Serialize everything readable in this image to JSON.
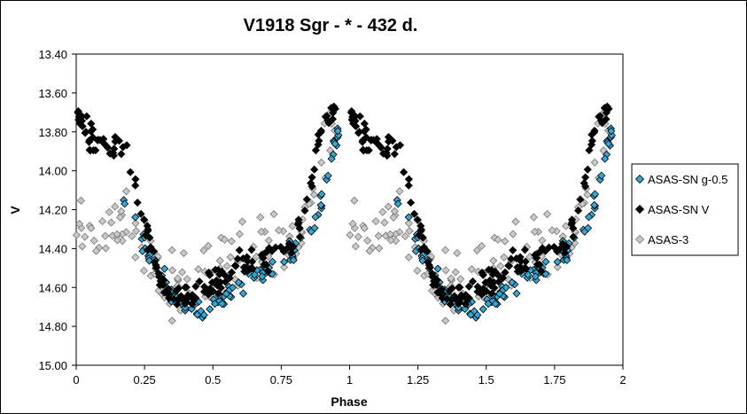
{
  "chart_data": {
    "type": "scatter",
    "title": "V1918 Sgr - * - 432 d.",
    "xlabel": "Phase",
    "ylabel": "V",
    "xlim": [
      0,
      2
    ],
    "ylim": [
      15.0,
      13.4
    ],
    "y_reversed": true,
    "grid": false,
    "legend_position": "right",
    "x_ticks": [
      "0",
      "0.25",
      "0.5",
      "0.75",
      "1",
      "1.25",
      "1.5",
      "1.75",
      "2"
    ],
    "y_ticks": [
      "13.40",
      "13.60",
      "13.80",
      "14.00",
      "14.20",
      "14.40",
      "14.60",
      "14.80",
      "15.00"
    ],
    "series": [
      {
        "name": "ASAS-SN g-0.5",
        "marker": "diamond",
        "color": "#33a7d6",
        "curve": {
          "phase": [
            0.17,
            0.2,
            0.25,
            0.3,
            0.35,
            0.4,
            0.45,
            0.5,
            0.55,
            0.6,
            0.65,
            0.7,
            0.75,
            0.8,
            0.85,
            0.9,
            0.93,
            0.96
          ],
          "mag": [
            14.18,
            14.22,
            14.38,
            14.52,
            14.63,
            14.7,
            14.72,
            14.68,
            14.63,
            14.58,
            14.54,
            14.5,
            14.46,
            14.42,
            14.34,
            14.15,
            13.92,
            13.78
          ]
        },
        "scatter": 0.05
      },
      {
        "name": "ASAS-SN V",
        "marker": "diamond",
        "color": "#000000",
        "curve": {
          "phase": [
            0.0,
            0.05,
            0.1,
            0.15,
            0.2,
            0.25,
            0.3,
            0.35,
            0.4,
            0.45,
            0.5,
            0.55,
            0.6,
            0.65,
            0.7,
            0.75,
            0.8,
            0.85,
            0.9,
            0.95
          ],
          "mag": [
            13.7,
            13.82,
            13.86,
            13.88,
            13.95,
            14.3,
            14.55,
            14.63,
            14.65,
            14.62,
            14.56,
            14.52,
            14.49,
            14.46,
            14.43,
            14.42,
            14.4,
            14.1,
            13.75,
            13.68
          ]
        },
        "scatter": 0.06
      },
      {
        "name": "ASAS-3",
        "marker": "diamond",
        "color": "#c8c8c8",
        "curve": {
          "phase": [
            0.0,
            0.1,
            0.2,
            0.25,
            0.3,
            0.35,
            0.4,
            0.5,
            0.6,
            0.7,
            0.8,
            0.85,
            0.9,
            0.95
          ],
          "mag": [
            14.35,
            14.3,
            14.3,
            14.4,
            14.55,
            14.62,
            14.6,
            14.5,
            14.45,
            14.4,
            14.35,
            14.2,
            13.95,
            13.8
          ]
        },
        "scatter": 0.14
      }
    ]
  }
}
